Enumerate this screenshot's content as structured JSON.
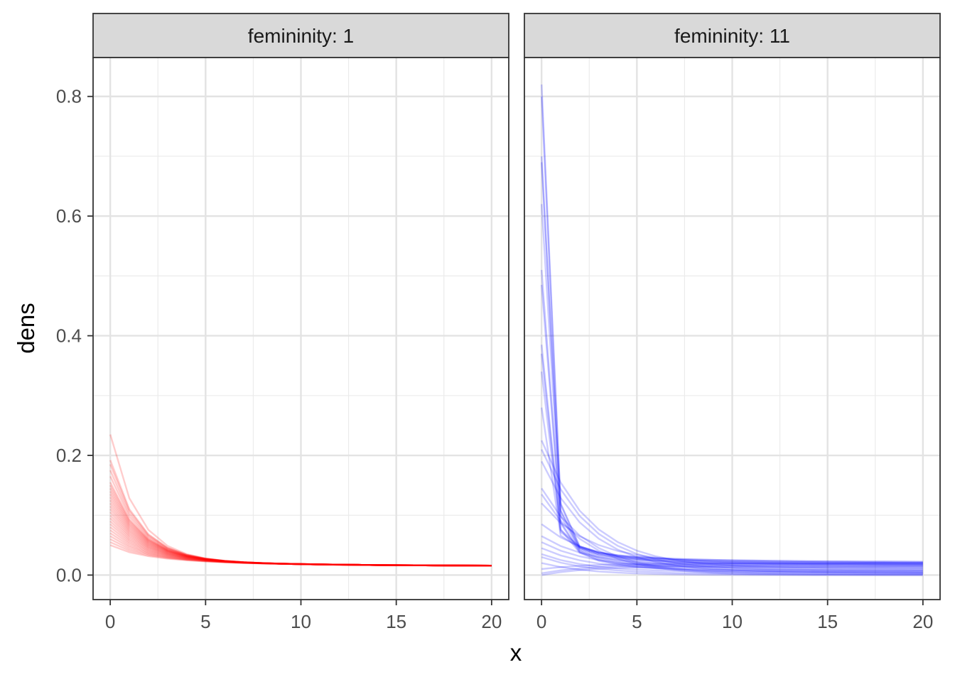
{
  "chart_data": {
    "type": "line",
    "facet_variable": "femininity",
    "xlabel": "x",
    "ylabel": "dens",
    "xlim": [
      -0.9,
      20.9
    ],
    "ylim": [
      -0.041,
      0.865
    ],
    "x_ticks": [
      0,
      5,
      10,
      15,
      20
    ],
    "x_tick_labels": [
      "0",
      "5",
      "10",
      "15",
      "20"
    ],
    "y_ticks": [
      0.0,
      0.2,
      0.4,
      0.6,
      0.8
    ],
    "y_tick_labels": [
      "0.0",
      "0.2",
      "0.4",
      "0.6",
      "0.8"
    ],
    "grid": true,
    "theme": "bw",
    "panels": [
      {
        "strip_label": "femininity: 1",
        "color": "#ff0000",
        "line_opacity": 0.2,
        "x": [
          0,
          1,
          2,
          3,
          4,
          5,
          6,
          7,
          8,
          9,
          10,
          11,
          12,
          13,
          14,
          15,
          16,
          17,
          18,
          19,
          20
        ],
        "series_endpoints": {
          "y_at_x0": [
            0.235,
            0.192,
            0.185,
            0.175,
            0.165,
            0.155,
            0.15,
            0.145,
            0.14,
            0.135,
            0.13,
            0.125,
            0.12,
            0.115,
            0.11,
            0.105,
            0.1,
            0.095,
            0.09,
            0.085,
            0.08,
            0.075,
            0.07,
            0.065,
            0.06,
            0.055,
            0.05
          ],
          "y_at_x20": 0.014
        }
      },
      {
        "strip_label": "femininity: 11",
        "color": "#0000ff",
        "line_opacity": 0.2,
        "x": [
          0,
          1,
          2,
          3,
          4,
          5,
          6,
          7,
          8,
          9,
          10,
          11,
          12,
          13,
          14,
          15,
          16,
          17,
          18,
          19,
          20
        ],
        "series_endpoints": {
          "y_at_x0": [
            0.82,
            0.8,
            0.7,
            0.69,
            0.62,
            0.51,
            0.485,
            0.385,
            0.37,
            0.34,
            0.28,
            0.225,
            0.21,
            0.19,
            0.145,
            0.135,
            0.12,
            0.085,
            0.065,
            0.055,
            0.045,
            0.035,
            0.03,
            0.02,
            0.01,
            0.003,
            0.0
          ],
          "y_at_x20": [
            0.02,
            0.018,
            0.015,
            0.012,
            0.008,
            0.005,
            0.002,
            0.0
          ]
        }
      }
    ]
  }
}
